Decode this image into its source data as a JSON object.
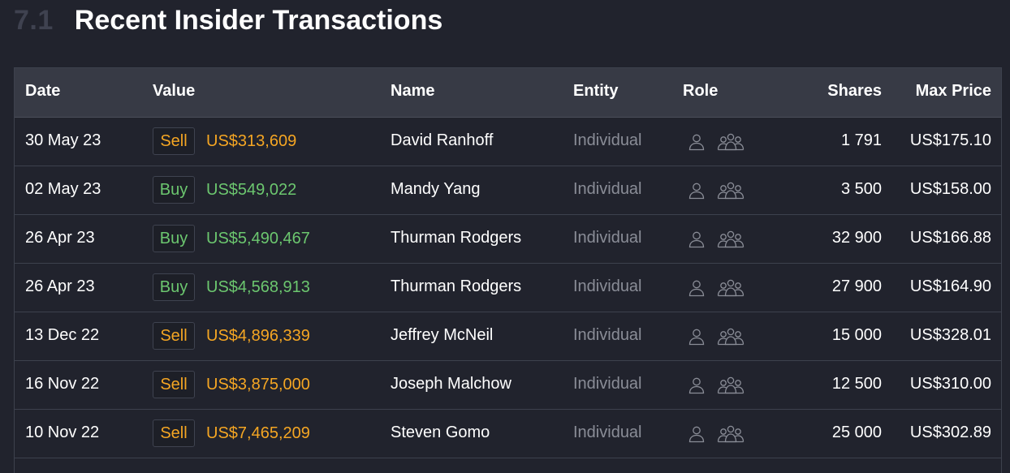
{
  "section": {
    "number": "7.1",
    "title": "Recent Insider Transactions"
  },
  "table": {
    "headers": {
      "date": "Date",
      "value": "Value",
      "name": "Name",
      "entity": "Entity",
      "role": "Role",
      "shares": "Shares",
      "max_price": "Max Price"
    },
    "rows": [
      {
        "date": "30 May 23",
        "type": "Sell",
        "amount": "US$313,609",
        "name": "David Ranhoff",
        "entity": "Individual",
        "shares": "1 791",
        "max_price": "US$175.10"
      },
      {
        "date": "02 May 23",
        "type": "Buy",
        "amount": "US$549,022",
        "name": "Mandy Yang",
        "entity": "Individual",
        "shares": "3 500",
        "max_price": "US$158.00"
      },
      {
        "date": "26 Apr 23",
        "type": "Buy",
        "amount": "US$5,490,467",
        "name": "Thurman Rodgers",
        "entity": "Individual",
        "shares": "32 900",
        "max_price": "US$166.88"
      },
      {
        "date": "26 Apr 23",
        "type": "Buy",
        "amount": "US$4,568,913",
        "name": "Thurman Rodgers",
        "entity": "Individual",
        "shares": "27 900",
        "max_price": "US$164.90"
      },
      {
        "date": "13 Dec 22",
        "type": "Sell",
        "amount": "US$4,896,339",
        "name": "Jeffrey McNeil",
        "entity": "Individual",
        "shares": "15 000",
        "max_price": "US$328.01"
      },
      {
        "date": "16 Nov 22",
        "type": "Sell",
        "amount": "US$3,875,000",
        "name": "Joseph Malchow",
        "entity": "Individual",
        "shares": "12 500",
        "max_price": "US$310.00"
      },
      {
        "date": "10 Nov 22",
        "type": "Sell",
        "amount": "US$7,465,209",
        "name": "Steven Gomo",
        "entity": "Individual",
        "shares": "25 000",
        "max_price": "US$302.89"
      }
    ]
  },
  "icons": {
    "role_individual": "person-icon",
    "role_group": "people-group-icon"
  },
  "colors": {
    "background": "#21232d",
    "header_background": "#373a45",
    "sell": "#f5a623",
    "buy": "#6cc76f",
    "muted_text": "#8a8d97",
    "icon": "#8a8d97"
  }
}
